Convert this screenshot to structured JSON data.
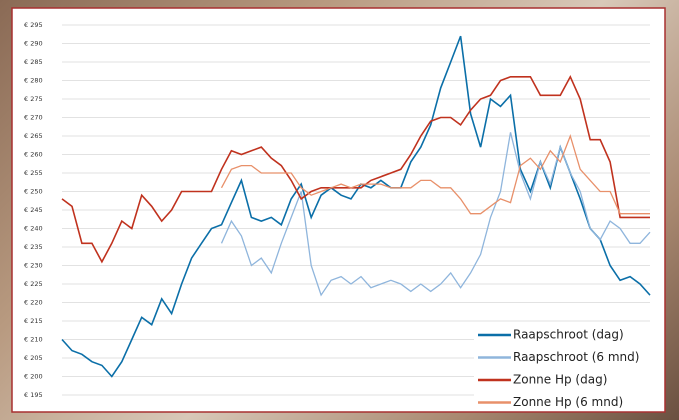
{
  "chart_data": {
    "type": "line",
    "ylim": [
      195,
      295
    ],
    "yticks": [
      {
        "value": 195,
        "label": "€ 195"
      },
      {
        "value": 200,
        "label": "€ 200"
      },
      {
        "value": 205,
        "label": "€ 205"
      },
      {
        "value": 210,
        "label": "€ 210"
      },
      {
        "value": 215,
        "label": "€ 215"
      },
      {
        "value": 220,
        "label": "€ 220"
      },
      {
        "value": 225,
        "label": "€ 225"
      },
      {
        "value": 230,
        "label": "€ 230"
      },
      {
        "value": 235,
        "label": "€ 235"
      },
      {
        "value": 240,
        "label": "€ 240"
      },
      {
        "value": 245,
        "label": "€ 245"
      },
      {
        "value": 250,
        "label": "€ 250"
      },
      {
        "value": 255,
        "label": "€ 255"
      },
      {
        "value": 260,
        "label": "€ 260"
      },
      {
        "value": 265,
        "label": "€ 265"
      },
      {
        "value": 270,
        "label": "€ 270"
      },
      {
        "value": 275,
        "label": "€ 275"
      },
      {
        "value": 280,
        "label": "€ 280"
      },
      {
        "value": 285,
        "label": "€ 285"
      },
      {
        "value": 290,
        "label": "€ 290"
      },
      {
        "value": 295,
        "label": "€ 295"
      }
    ],
    "grid": true,
    "legend": "bottom-right",
    "series": [
      {
        "name": "Raapschroot (dag)",
        "color": "#0b6fa8",
        "values": [
          210,
          207,
          206,
          204,
          203,
          200,
          204,
          210,
          216,
          214,
          221,
          217,
          225,
          232,
          236,
          240,
          241,
          247,
          253,
          243,
          242,
          243,
          241,
          248,
          252,
          243,
          249,
          251,
          249,
          248,
          252,
          251,
          253,
          251,
          251,
          258,
          262,
          268,
          278,
          285,
          292,
          271,
          262,
          275,
          273,
          276,
          256,
          250,
          258,
          251,
          262,
          255,
          248,
          240,
          237,
          230,
          226,
          227,
          225,
          222
        ]
      },
      {
        "name": "Raapschroot (6 mnd)",
        "color": "#8fb5dc",
        "values": [
          null,
          null,
          null,
          null,
          null,
          null,
          null,
          null,
          null,
          null,
          null,
          null,
          null,
          null,
          null,
          null,
          236,
          242,
          238,
          230,
          232,
          228,
          236,
          243,
          250,
          230,
          222,
          226,
          227,
          225,
          227,
          224,
          225,
          226,
          225,
          223,
          225,
          223,
          225,
          228,
          224,
          228,
          233,
          243,
          250,
          266,
          255,
          248,
          258,
          252,
          262,
          255,
          250,
          240,
          237,
          242,
          240,
          236,
          236,
          239
        ]
      },
      {
        "name": "Zonne Hp (dag)",
        "color": "#c0321e",
        "values": [
          248,
          246,
          236,
          236,
          231,
          236,
          242,
          240,
          249,
          246,
          242,
          245,
          250,
          250,
          250,
          250,
          256,
          261,
          260,
          261,
          262,
          259,
          257,
          253,
          248,
          250,
          251,
          251,
          251,
          251,
          251,
          253,
          254,
          255,
          256,
          260,
          265,
          269,
          270,
          270,
          268,
          272,
          275,
          276,
          280,
          281,
          281,
          281,
          276,
          276,
          276,
          281,
          275,
          264,
          264,
          258,
          243,
          243,
          243,
          243
        ]
      },
      {
        "name": "Zonne Hp (6 mnd)",
        "color": "#e8906a",
        "values": [
          null,
          null,
          null,
          null,
          null,
          null,
          null,
          null,
          null,
          null,
          null,
          null,
          null,
          null,
          null,
          null,
          251,
          256,
          257,
          257,
          255,
          255,
          255,
          255,
          251,
          249,
          250,
          251,
          252,
          251,
          252,
          252,
          252,
          251,
          251,
          251,
          253,
          253,
          251,
          251,
          248,
          244,
          244,
          246,
          248,
          247,
          257,
          259,
          256,
          261,
          258,
          265,
          256,
          253,
          250,
          250,
          244,
          244,
          244,
          244
        ]
      }
    ]
  }
}
